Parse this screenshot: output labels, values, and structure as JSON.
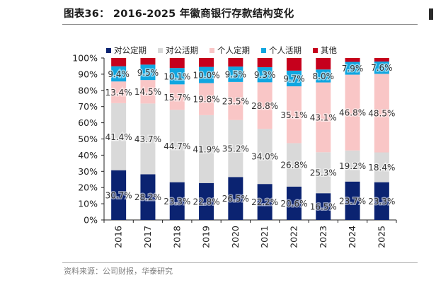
{
  "header": {
    "title": "图表36：  2016-2025 年徽商银行存款结构变化"
  },
  "footer": {
    "source": "资料来源：公司财报，华泰研究"
  },
  "colors": {
    "对公定期": "#0b2371",
    "对公活期": "#d9d9d9",
    "个人定期": "#f9c6c6",
    "个人活期": "#10a6e0",
    "其他": "#c6001c"
  },
  "chart_data": {
    "type": "bar",
    "stacked": true,
    "categories": [
      "2016",
      "2017",
      "2018",
      "2019",
      "2020",
      "2021",
      "2022",
      "2023",
      "2024",
      "2025"
    ],
    "series": [
      {
        "name": "对公定期",
        "values": [
          30.7,
          28.2,
          23.3,
          22.8,
          26.5,
          22.2,
          20.6,
          16.5,
          23.7,
          23.3
        ],
        "labels": [
          "30.7%",
          "28.2%",
          "23.3%",
          "22.8%",
          "26.5%",
          "22.2%",
          "20.6%",
          "16.5%",
          "23.7%",
          "23.3%"
        ]
      },
      {
        "name": "对公活期",
        "values": [
          41.4,
          43.7,
          44.7,
          41.9,
          35.2,
          34.0,
          26.8,
          25.3,
          19.2,
          18.4
        ],
        "labels": [
          "41.4%",
          "43.7%",
          "44.7%",
          "41.9%",
          "35.2%",
          "34.0%",
          "26.8%",
          "25.3%",
          "19.2%",
          "18.4%"
        ]
      },
      {
        "name": "个人定期",
        "values": [
          13.4,
          14.5,
          15.7,
          19.8,
          23.5,
          28.8,
          35.1,
          43.1,
          46.8,
          48.5
        ],
        "labels": [
          "13.4%",
          "14.5%",
          "15.7%",
          "19.8%",
          "23.5%",
          "28.8%",
          "35.1%",
          "43.1%",
          "46.8%",
          "48.5%"
        ]
      },
      {
        "name": "个人活期",
        "values": [
          9.4,
          9.5,
          10.1,
          10.0,
          9.5,
          9.3,
          9.7,
          8.0,
          7.9,
          7.6
        ],
        "labels": [
          "9.4%",
          "9.5%",
          "10.1%",
          "10.0%",
          "9.5%",
          "9.3%",
          "9.7%",
          "8.0%",
          "7.9%",
          "7.6%"
        ]
      },
      {
        "name": "其他",
        "values": [
          5.1,
          4.1,
          6.2,
          5.5,
          5.3,
          5.7,
          7.8,
          7.1,
          2.4,
          2.2
        ]
      }
    ],
    "ylim": [
      0,
      100
    ],
    "yticks": [
      "0%",
      "10%",
      "20%",
      "30%",
      "40%",
      "50%",
      "60%",
      "70%",
      "80%",
      "90%",
      "100%"
    ],
    "legend_position": "top",
    "grid": false
  }
}
